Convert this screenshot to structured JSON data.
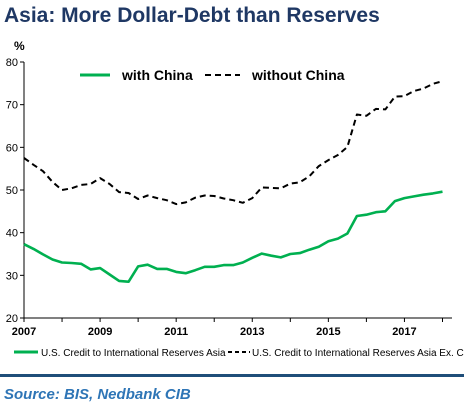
{
  "title": "Asia: More Dollar-Debt than Reserves",
  "source": "Source: BIS, Nedbank CIB",
  "chart_data": {
    "type": "line",
    "ylabel": "%",
    "xlabel": "",
    "ylim": [
      20,
      80
    ],
    "xlim": [
      2007,
      2018.25
    ],
    "yticks": [
      20,
      30,
      40,
      50,
      60,
      70,
      80
    ],
    "xticks": [
      2007,
      2009,
      2011,
      2013,
      2015,
      2017
    ],
    "grid": false,
    "inline_legend": {
      "with_china": "with China",
      "without_china": "without China"
    },
    "series": [
      {
        "name": "U.S. Credit to International Reserves Asia",
        "color": "#00b050",
        "dash": "solid",
        "x": [
          2007.0,
          2007.25,
          2007.5,
          2007.75,
          2008.0,
          2008.25,
          2008.5,
          2008.75,
          2009.0,
          2009.25,
          2009.5,
          2009.75,
          2010.0,
          2010.25,
          2010.5,
          2010.75,
          2011.0,
          2011.25,
          2011.5,
          2011.75,
          2012.0,
          2012.25,
          2012.5,
          2012.75,
          2013.0,
          2013.25,
          2013.5,
          2013.75,
          2014.0,
          2014.25,
          2014.5,
          2014.75,
          2015.0,
          2015.25,
          2015.5,
          2015.75,
          2016.0,
          2016.25,
          2016.5,
          2016.75,
          2017.0,
          2017.25,
          2017.5,
          2017.75,
          2018.0
        ],
        "values": [
          37.3,
          36.2,
          34.9,
          33.7,
          33.0,
          32.9,
          32.7,
          31.4,
          31.7,
          30.2,
          28.7,
          28.5,
          32.1,
          32.5,
          31.5,
          31.5,
          30.8,
          30.5,
          31.2,
          32.0,
          32.0,
          32.4,
          32.4,
          33.0,
          34.1,
          35.1,
          34.6,
          34.2,
          35.0,
          35.2,
          36.0,
          36.7,
          38.0,
          38.6,
          39.8,
          43.9,
          44.2,
          44.8,
          45.0,
          47.4,
          48.1,
          48.5,
          48.9,
          49.2,
          49.6
        ]
      },
      {
        "name": "U.S. Credit to International Reserves Asia Ex. China",
        "color": "#000000",
        "dash": "dashed",
        "x": [
          2007.0,
          2007.25,
          2007.5,
          2007.75,
          2008.0,
          2008.25,
          2008.5,
          2008.75,
          2009.0,
          2009.25,
          2009.5,
          2009.75,
          2010.0,
          2010.25,
          2010.5,
          2010.75,
          2011.0,
          2011.25,
          2011.5,
          2011.75,
          2012.0,
          2012.25,
          2012.5,
          2012.75,
          2013.0,
          2013.25,
          2013.5,
          2013.75,
          2014.0,
          2014.25,
          2014.5,
          2014.75,
          2015.0,
          2015.25,
          2015.5,
          2015.75,
          2016.0,
          2016.25,
          2016.5,
          2016.75,
          2017.0,
          2017.25,
          2017.5,
          2017.75,
          2018.0
        ],
        "values": [
          57.5,
          55.9,
          54.4,
          51.9,
          50.0,
          50.4,
          51.2,
          51.4,
          52.8,
          51.4,
          49.5,
          49.3,
          47.9,
          48.7,
          48.1,
          47.6,
          46.7,
          47.1,
          48.2,
          48.7,
          48.6,
          48.0,
          47.6,
          47.0,
          48.1,
          50.6,
          50.5,
          50.4,
          51.5,
          51.8,
          53.2,
          55.6,
          57.0,
          58.2,
          60.1,
          67.7,
          67.4,
          69.0,
          68.9,
          71.9,
          72.0,
          73.2,
          73.8,
          74.9,
          75.5
        ]
      }
    ]
  }
}
